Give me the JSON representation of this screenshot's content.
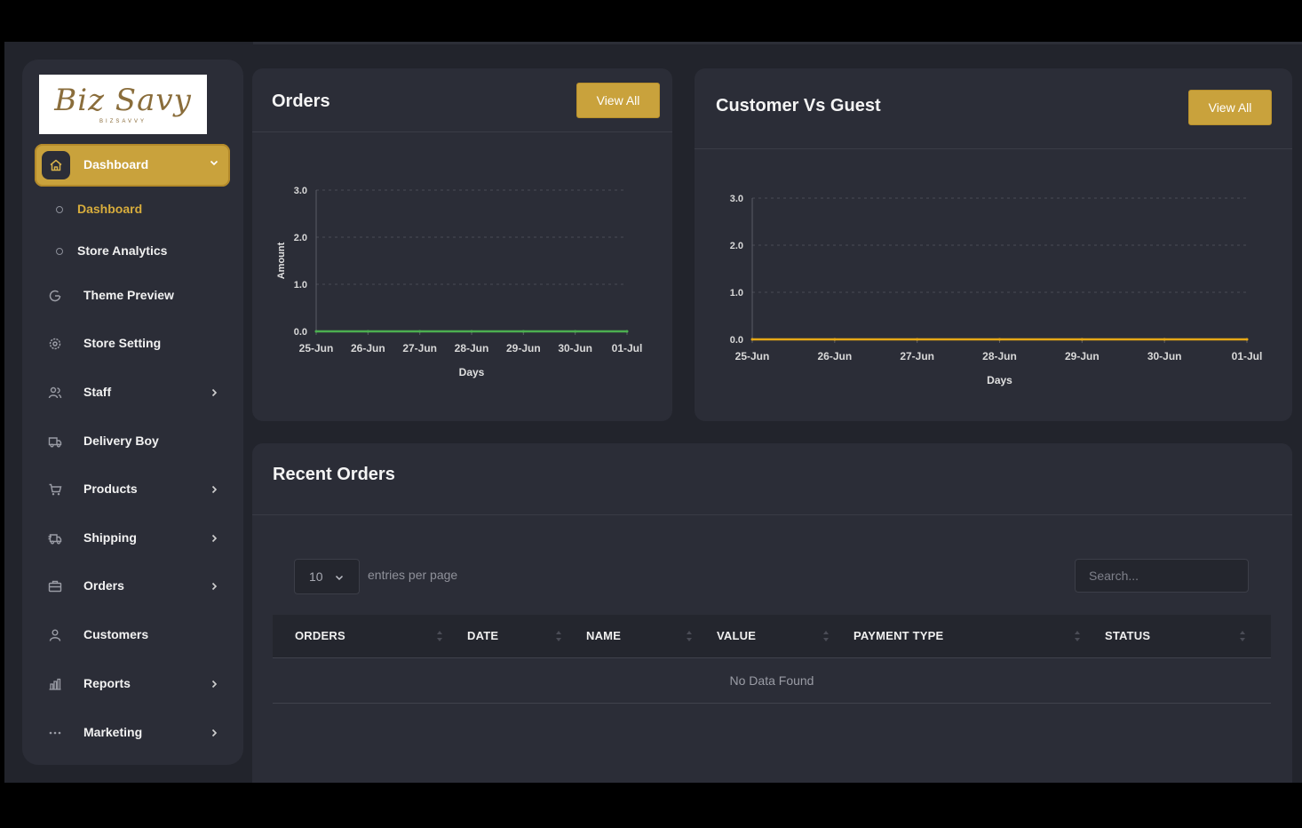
{
  "brand": {
    "logo_script": "Biz Savy",
    "logo_sub": "BIZSAVVY"
  },
  "sidebar": {
    "active": {
      "label": "Dashboard",
      "icon": "home-icon"
    },
    "subitems": [
      {
        "label": "Dashboard",
        "active": true
      },
      {
        "label": "Store Analytics",
        "active": false
      }
    ],
    "items": [
      {
        "label": "Theme Preview",
        "icon": "theme-preview-icon",
        "has_chevron": false
      },
      {
        "label": "Store Setting",
        "icon": "gear-icon",
        "has_chevron": false
      },
      {
        "label": "Staff",
        "icon": "users-icon",
        "has_chevron": true
      },
      {
        "label": "Delivery Boy",
        "icon": "truck-icon",
        "has_chevron": false
      },
      {
        "label": "Products",
        "icon": "cart-icon",
        "has_chevron": true
      },
      {
        "label": "Shipping",
        "icon": "shipping-icon",
        "has_chevron": true
      },
      {
        "label": "Orders",
        "icon": "briefcase-icon",
        "has_chevron": true
      },
      {
        "label": "Customers",
        "icon": "user-icon",
        "has_chevron": false
      },
      {
        "label": "Reports",
        "icon": "bar-chart-icon",
        "has_chevron": true
      },
      {
        "label": "Marketing",
        "icon": "more-icon",
        "has_chevron": true
      }
    ]
  },
  "orders_card": {
    "title": "Orders",
    "button": "View All"
  },
  "customer_card": {
    "title": "Customer Vs Guest",
    "button": "View All"
  },
  "recent_orders": {
    "title": "Recent Orders",
    "entries_value": "10",
    "entries_label": "entries per page",
    "search_placeholder": "Search...",
    "columns": [
      "ORDERS",
      "DATE",
      "NAME",
      "VALUE",
      "PAYMENT TYPE",
      "STATUS"
    ],
    "empty_text": "No Data Found"
  },
  "colors": {
    "accent": "#c9a23c",
    "orders_line": "#4caf50",
    "customer_line": "#e6a817",
    "panel": "#2b2d37",
    "background": "#22242c"
  },
  "chart_data": [
    {
      "type": "line",
      "categories": [
        "25-Jun",
        "26-Jun",
        "27-Jun",
        "28-Jun",
        "29-Jun",
        "30-Jun",
        "01-Jul"
      ],
      "series": [
        {
          "values": [
            0,
            0,
            0,
            0,
            0,
            0,
            0
          ]
        }
      ],
      "xlabel": "Days",
      "ylabel": "Amount",
      "ylim": [
        0,
        3
      ],
      "yticks": [
        "0.0",
        "1.0",
        "2.0",
        "3.0"
      ],
      "grid": true
    },
    {
      "type": "line",
      "categories": [
        "25-Jun",
        "26-Jun",
        "27-Jun",
        "28-Jun",
        "29-Jun",
        "30-Jun",
        "01-Jul"
      ],
      "series": [
        {
          "values": [
            0,
            0,
            0,
            0,
            0,
            0,
            0
          ]
        }
      ],
      "xlabel": "Days",
      "ylabel": "",
      "ylim": [
        0,
        3
      ],
      "yticks": [
        "0.0",
        "1.0",
        "2.0",
        "3.0"
      ],
      "grid": true
    }
  ]
}
